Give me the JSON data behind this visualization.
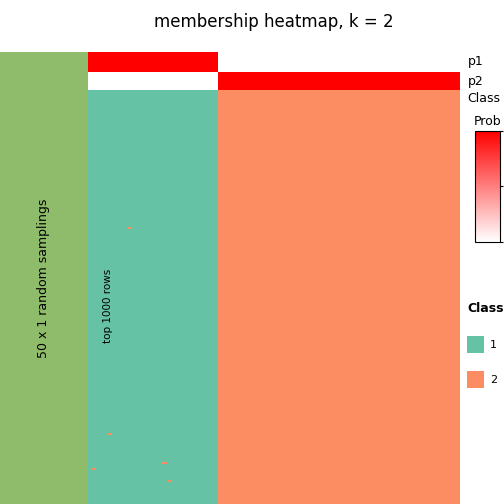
{
  "title": "membership heatmap, k = 2",
  "n_cols": 1000,
  "split_col": 350,
  "color_class1": "#66C2A5",
  "color_class2": "#FC8D62",
  "color_red": "#FF0000",
  "color_white": "#FFFFFF",
  "color_bg_label": "#8FBC6A",
  "row_labels": [
    "p1",
    "p2",
    "Class"
  ],
  "left_label1": "50 x 1 random samplings",
  "left_label2": "top 1000 rows",
  "legend_class_colors": [
    "#66C2A5",
    "#FC8D62"
  ],
  "legend_class_labels": [
    "1",
    "2"
  ],
  "title_fontsize": 12,
  "label_fontsize": 9,
  "annot_fontsize": 9
}
